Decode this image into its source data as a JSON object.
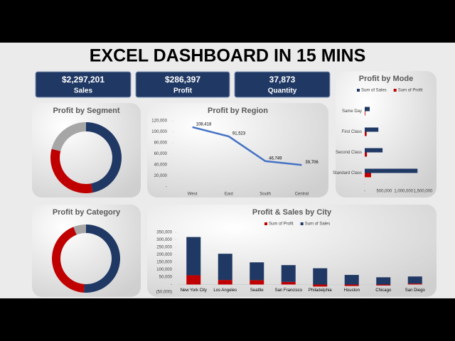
{
  "header": {
    "title": "EXCEL DASHBOARD IN 15 MINS"
  },
  "kpis": [
    {
      "value": "$2,297,201",
      "label": "Sales"
    },
    {
      "value": "$286,397",
      "label": "Profit"
    },
    {
      "value": "37,873",
      "label": "Quantity"
    }
  ],
  "chart_data": [
    {
      "type": "pie",
      "title": "Profit by Segment",
      "values": [
        47,
        32,
        21
      ],
      "colors": [
        "#203864",
        "#c00000",
        "#a6a6a6"
      ],
      "donut": true
    },
    {
      "type": "line",
      "title": "Profit by Region",
      "categories": [
        "West",
        "East",
        "South",
        "Central"
      ],
      "values": [
        108418,
        91523,
        46749,
        39706
      ],
      "value_labels": [
        "108,418",
        "91,523",
        "46,749",
        "39,706"
      ],
      "color": "#4472c4",
      "ylim": [
        0,
        120000
      ],
      "yticks": [
        {
          "value": 0,
          "label": "-"
        },
        {
          "value": 20000,
          "label": "20,000"
        },
        {
          "value": 40000,
          "label": "40,000"
        },
        {
          "value": 60000,
          "label": "60,000"
        },
        {
          "value": 80000,
          "label": "80,000"
        },
        {
          "value": 100000,
          "label": "100,000"
        },
        {
          "value": 120000,
          "label": "120,000"
        }
      ],
      "grid": false
    },
    {
      "type": "hbar",
      "title": "Profit by Mode",
      "categories": [
        "Same Day",
        "First Class",
        "Second Class",
        "Standard Class"
      ],
      "series": [
        {
          "name": "Sum of Sales",
          "color": "#203864",
          "values": [
            128363,
            351428,
            459194,
            1358216
          ]
        },
        {
          "name": "Sum of Profit",
          "color": "#c00000",
          "values": [
            15892,
            48970,
            57447,
            164089
          ]
        }
      ],
      "xlim": [
        0,
        1500000
      ],
      "xticks": [
        {
          "value": 0,
          "label": "-"
        },
        {
          "value": 500000,
          "label": "500,000"
        },
        {
          "value": 1000000,
          "label": "1,000,000"
        },
        {
          "value": 1500000,
          "label": "1,500,000"
        }
      ]
    },
    {
      "type": "pie",
      "title": "Profit by Category",
      "values": [
        51,
        43,
        6
      ],
      "colors": [
        "#203864",
        "#c00000",
        "#a6a6a6"
      ],
      "donut": true
    },
    {
      "type": "stacked_bar",
      "title": "Profit & Sales by City",
      "categories": [
        "New York City",
        "Los Angeles",
        "Seattle",
        "San Francisco",
        "Philadelphia",
        "Houston",
        "Chicago",
        "San Diego"
      ],
      "series": [
        {
          "name": "Sum of Profit",
          "color": "#c00000",
          "values": [
            62037,
            30441,
            29156,
            17507,
            -13838,
            -10154,
            -6655,
            6377
          ]
        },
        {
          "name": "Sum of Sales",
          "color": "#203864",
          "values": [
            256368,
            175851,
            119541,
            112669,
            109077,
            64505,
            48540,
            47521
          ]
        }
      ],
      "ylim": [
        -50000,
        350000
      ],
      "yticks": [
        {
          "value": -50000,
          "label": "(50,000)"
        },
        {
          "value": 0,
          "label": "-"
        },
        {
          "value": 50000,
          "label": "50,000"
        },
        {
          "value": 100000,
          "label": "100,000"
        },
        {
          "value": 150000,
          "label": "150,000"
        },
        {
          "value": 200000,
          "label": "200,000"
        },
        {
          "value": 250000,
          "label": "250,000"
        },
        {
          "value": 300000,
          "label": "300,000"
        },
        {
          "value": 350000,
          "label": "350,000"
        }
      ]
    }
  ]
}
